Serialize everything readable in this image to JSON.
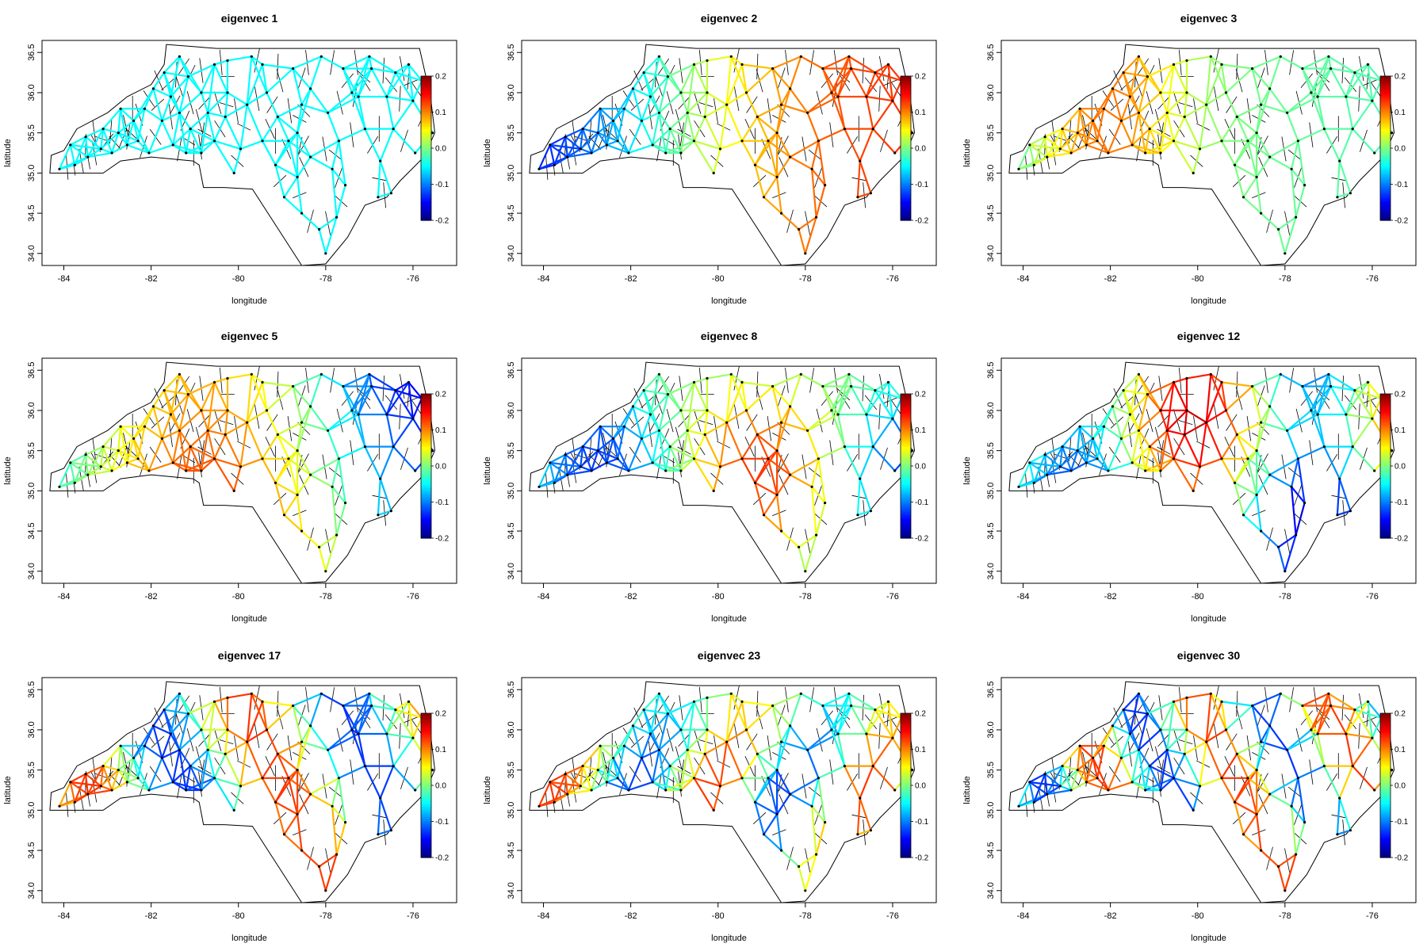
{
  "chart_data": {
    "type": "network-map",
    "layout": {
      "rows": 3,
      "cols": 3
    },
    "xlabel": "longitude",
    "ylabel": "latitude",
    "xlim": [
      -84.5,
      -75
    ],
    "ylim": [
      33.85,
      36.65
    ],
    "xticks": [
      -84,
      -82,
      -80,
      -78,
      -76
    ],
    "yticks": [
      34.0,
      34.5,
      35.0,
      35.5,
      36.0,
      36.5
    ],
    "xtick_labels": [
      "-84",
      "-82",
      "-80",
      "-78",
      "-76"
    ],
    "ytick_labels": [
      "34.0",
      "34.5",
      "35.0",
      "35.5",
      "36.0",
      "36.5"
    ],
    "colorbar": {
      "range": [
        -0.2,
        0.2
      ],
      "ticks": [
        0.2,
        0.1,
        0.0,
        -0.1,
        -0.2
      ],
      "tick_labels": [
        "0.2",
        "0.1",
        "0.0",
        "-0.1",
        "-0.2"
      ],
      "colormap": "jet",
      "colors": [
        "#00007f",
        "#0000ff",
        "#007fff",
        "#00ffff",
        "#7fff7f",
        "#ffff00",
        "#ff7f00",
        "#ff0000",
        "#7f0000"
      ]
    },
    "outline_color": "#000000",
    "panels": [
      {
        "title": "eigenvec 1",
        "eig_index": 1
      },
      {
        "title": "eigenvec 2",
        "eig_index": 2
      },
      {
        "title": "eigenvec 3",
        "eig_index": 3
      },
      {
        "title": "eigenvec 5",
        "eig_index": 5
      },
      {
        "title": "eigenvec 8",
        "eig_index": 8
      },
      {
        "title": "eigenvec 12",
        "eig_index": 12
      },
      {
        "title": "eigenvec 17",
        "eig_index": 17
      },
      {
        "title": "eigenvec 23",
        "eig_index": 23
      },
      {
        "title": "eigenvec 30",
        "eig_index": 30
      }
    ],
    "state_outline": [
      [
        -84.32,
        35.0
      ],
      [
        -84.0,
        35.0
      ],
      [
        -83.1,
        35.0
      ],
      [
        -82.7,
        35.15
      ],
      [
        -82.0,
        35.2
      ],
      [
        -81.04,
        35.15
      ],
      [
        -80.9,
        35.1
      ],
      [
        -80.8,
        34.82
      ],
      [
        -80.32,
        34.82
      ],
      [
        -79.68,
        34.8
      ],
      [
        -78.55,
        33.85
      ],
      [
        -78.0,
        33.87
      ],
      [
        -77.5,
        34.2
      ],
      [
        -77.1,
        34.6
      ],
      [
        -76.6,
        34.7
      ],
      [
        -76.3,
        34.9
      ],
      [
        -75.75,
        35.2
      ],
      [
        -75.5,
        35.5
      ],
      [
        -75.6,
        35.95
      ],
      [
        -75.85,
        36.55
      ],
      [
        -77.0,
        36.55
      ],
      [
        -79.0,
        36.55
      ],
      [
        -80.5,
        36.55
      ],
      [
        -81.65,
        36.6
      ],
      [
        -81.7,
        36.35
      ],
      [
        -82.0,
        36.1
      ],
      [
        -82.55,
        35.95
      ],
      [
        -83.0,
        35.75
      ],
      [
        -83.7,
        35.55
      ],
      [
        -84.0,
        35.28
      ],
      [
        -84.29,
        35.22
      ],
      [
        -84.32,
        35.0
      ]
    ],
    "nodes": [
      [
        -84.1,
        35.05
      ],
      [
        -83.75,
        35.1
      ],
      [
        -83.45,
        35.2
      ],
      [
        -83.85,
        35.35
      ],
      [
        -83.5,
        35.45
      ],
      [
        -83.15,
        35.3
      ],
      [
        -82.9,
        35.25
      ],
      [
        -83.1,
        35.55
      ],
      [
        -82.75,
        35.5
      ],
      [
        -82.55,
        35.35
      ],
      [
        -82.3,
        35.4
      ],
      [
        -82.4,
        35.65
      ],
      [
        -82.7,
        35.8
      ],
      [
        -82.15,
        35.8
      ],
      [
        -81.95,
        36.05
      ],
      [
        -81.7,
        36.25
      ],
      [
        -81.35,
        36.45
      ],
      [
        -81.15,
        36.2
      ],
      [
        -81.55,
        35.95
      ],
      [
        -81.75,
        35.65
      ],
      [
        -81.35,
        35.75
      ],
      [
        -81.1,
        35.55
      ],
      [
        -81.5,
        35.35
      ],
      [
        -81.2,
        35.25
      ],
      [
        -80.85,
        35.25
      ],
      [
        -80.55,
        35.4
      ],
      [
        -80.7,
        35.75
      ],
      [
        -80.85,
        36.0
      ],
      [
        -80.55,
        36.35
      ],
      [
        -80.25,
        36.4
      ],
      [
        -80.25,
        36.0
      ],
      [
        -80.3,
        35.7
      ],
      [
        -79.95,
        35.3
      ],
      [
        -80.1,
        35.0
      ],
      [
        -79.8,
        35.85
      ],
      [
        -79.45,
        36.35
      ],
      [
        -79.35,
        36.0
      ],
      [
        -79.1,
        35.7
      ],
      [
        -79.45,
        35.4
      ],
      [
        -79.15,
        35.1
      ],
      [
        -78.85,
        35.4
      ],
      [
        -78.75,
        36.3
      ],
      [
        -78.55,
        35.85
      ],
      [
        -78.65,
        35.5
      ],
      [
        -78.35,
        35.2
      ],
      [
        -78.65,
        34.95
      ],
      [
        -78.95,
        34.7
      ],
      [
        -78.55,
        34.5
      ],
      [
        -78.15,
        34.3
      ],
      [
        -78.0,
        34.0
      ],
      [
        -77.75,
        34.45
      ],
      [
        -77.55,
        34.85
      ],
      [
        -77.85,
        35.05
      ],
      [
        -77.7,
        35.4
      ],
      [
        -77.95,
        35.75
      ],
      [
        -78.1,
        36.45
      ],
      [
        -77.6,
        36.3
      ],
      [
        -77.25,
        35.95
      ],
      [
        -77.1,
        35.55
      ],
      [
        -76.75,
        35.15
      ],
      [
        -76.5,
        34.75
      ],
      [
        -76.8,
        34.7
      ],
      [
        -76.45,
        35.55
      ],
      [
        -76.6,
        35.95
      ],
      [
        -76.95,
        36.3
      ],
      [
        -76.4,
        36.25
      ],
      [
        -76.1,
        36.35
      ],
      [
        -75.8,
        36.15
      ],
      [
        -76.0,
        35.9
      ],
      [
        -75.55,
        35.5
      ],
      [
        -75.95,
        35.25
      ],
      [
        -77.0,
        36.45
      ],
      [
        -77.4,
        36.0
      ],
      [
        -78.35,
        36.05
      ],
      [
        -79.7,
        36.45
      ],
      [
        -82.05,
        35.25
      ]
    ]
  }
}
